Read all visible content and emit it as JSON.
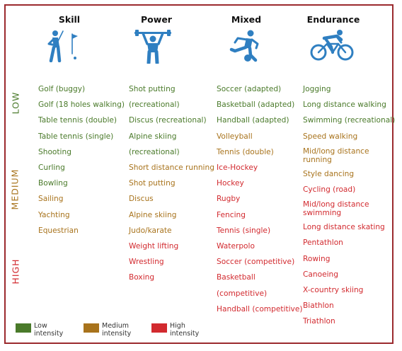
{
  "columns": [
    {
      "header": "Skill",
      "icon": "golfer-icon",
      "items": [
        {
          "text": "Golf (buggy)",
          "level": "low"
        },
        {
          "text": "Golf (18 holes walking)",
          "level": "low"
        },
        {
          "text": "Table tennis (double)",
          "level": "low"
        },
        {
          "text": "Table tennis (single)",
          "level": "low"
        },
        {
          "text": "Shooting",
          "level": "low"
        },
        {
          "text": "Curling",
          "level": "low"
        },
        {
          "text": "Bowling",
          "level": "low"
        },
        {
          "text": "Sailing",
          "level": "medium"
        },
        {
          "text": "Yachting",
          "level": "medium"
        },
        {
          "text": "Equestrian",
          "level": "medium"
        }
      ]
    },
    {
      "header": "Power",
      "icon": "weightlifter-icon",
      "items": [
        {
          "text": "Shot putting",
          "level": "low"
        },
        {
          "text": "(recreational)",
          "level": "low"
        },
        {
          "text": "Discus (recreational)",
          "level": "low"
        },
        {
          "text": "Alpine skiing",
          "level": "low"
        },
        {
          "text": "(recreational)",
          "level": "low"
        },
        {
          "text": "Short distance running",
          "level": "medium"
        },
        {
          "text": "Shot putting",
          "level": "medium"
        },
        {
          "text": "Discus",
          "level": "medium"
        },
        {
          "text": "Alpine skiing",
          "level": "medium"
        },
        {
          "text": "Judo/karate",
          "level": "medium"
        },
        {
          "text": "Weight lifting",
          "level": "high"
        },
        {
          "text": "Wrestling",
          "level": "high"
        },
        {
          "text": "Boxing",
          "level": "high"
        }
      ]
    },
    {
      "header": "Mixed",
      "icon": "soccer-player-icon",
      "items": [
        {
          "text": "Soccer (adapted)",
          "level": "low"
        },
        {
          "text": "Basketball (adapted)",
          "level": "low"
        },
        {
          "text": "Handball (adapted)",
          "level": "low"
        },
        {
          "text": "Volleyball",
          "level": "medium"
        },
        {
          "text": "Tennis (double)",
          "level": "medium"
        },
        {
          "text": "Ice-Hockey",
          "level": "high"
        },
        {
          "text": "Hockey",
          "level": "high"
        },
        {
          "text": "Rugby",
          "level": "high"
        },
        {
          "text": "Fencing",
          "level": "high"
        },
        {
          "text": "Tennis (single)",
          "level": "high"
        },
        {
          "text": "Waterpolo",
          "level": "high"
        },
        {
          "text": "Soccer (competitive)",
          "level": "high"
        },
        {
          "text": "Basketball",
          "level": "high"
        },
        {
          "text": "(competitive)",
          "level": "high"
        },
        {
          "text": "Handball (competitive)",
          "level": "high"
        }
      ]
    },
    {
      "header": "Endurance",
      "icon": "cyclist-icon",
      "items": [
        {
          "text": "Jogging",
          "level": "low"
        },
        {
          "text": "Long distance walking",
          "level": "low"
        },
        {
          "text": "Swimming (recreational)",
          "level": "low"
        },
        {
          "text": "Speed walking",
          "level": "medium"
        },
        {
          "text": "Mid/long distance running",
          "level": "medium"
        },
        {
          "text": "Style dancing",
          "level": "medium"
        },
        {
          "text": "Cycling (road)",
          "level": "high"
        },
        {
          "text": "Mid/long distance swimming",
          "level": "high"
        },
        {
          "text": "Long distance skating",
          "level": "high"
        },
        {
          "text": "Pentathlon",
          "level": "high"
        },
        {
          "text": "Rowing",
          "level": "high"
        },
        {
          "text": "Canoeing",
          "level": "high"
        },
        {
          "text": "X-country skiing",
          "level": "high"
        },
        {
          "text": "Biathlon",
          "level": "high"
        },
        {
          "text": "Triathlon",
          "level": "high"
        }
      ]
    }
  ],
  "levels": {
    "low": "LOW",
    "medium": "MEDIUM",
    "high": "HIGH"
  },
  "legend": {
    "low": "Low intensity",
    "medium": "Medium intensity",
    "high": "High intensity"
  },
  "colors": {
    "low": "#4a7a2a",
    "medium": "#a8731c",
    "high": "#d22a2f",
    "icon": "#2f7fc1",
    "frame": "#9b2a2e"
  }
}
